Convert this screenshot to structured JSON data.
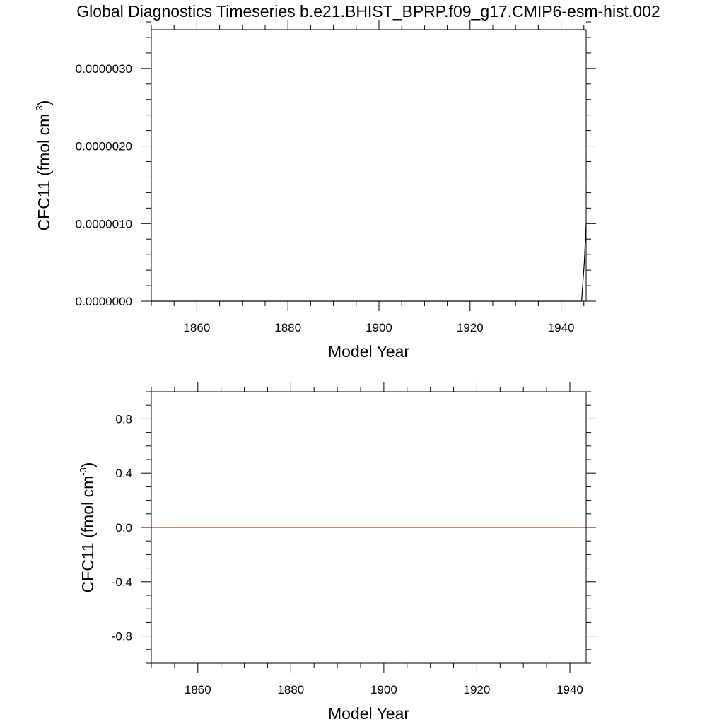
{
  "figure": {
    "title": "Global Diagnostics Timeseries b.e21.BHIST_BPRP.f09_g17.CMIP6-esm-hist.002"
  },
  "chart_data": [
    {
      "type": "line",
      "title": "",
      "xlabel": "Model Year",
      "ylabel": {
        "main": "CFC11 (fmol cm",
        "sup": "-3",
        "close": ")"
      },
      "xlim": [
        1850,
        1945.5
      ],
      "ylim": [
        0,
        3.5e-06
      ],
      "x_ticks": [
        1860,
        1880,
        1900,
        1920,
        1940
      ],
      "x_tick_labels": [
        "1860",
        "1880",
        "1900",
        "1920",
        "1940"
      ],
      "x_minor_step": 5,
      "y_ticks": [
        0,
        1e-06,
        2e-06,
        3e-06
      ],
      "y_tick_labels": [
        "0.0000000",
        "0.0000010",
        "0.0000020",
        "0.0000030"
      ],
      "y_minor_step": 2e-07,
      "grid": false,
      "series": [
        {
          "color": "#000000",
          "x": [
            1850,
            1944.5,
            1945.1,
            1945.5
          ],
          "y": [
            0,
            0,
            5e-07,
            1e-06
          ]
        }
      ]
    },
    {
      "type": "line",
      "title": "",
      "xlabel": "Model Year",
      "ylabel": {
        "main": "CFC11 (fmol cm",
        "sup": "-3",
        "close": ")"
      },
      "xlim": [
        1850,
        1943.5
      ],
      "ylim": [
        -1.0,
        1.0
      ],
      "x_ticks": [
        1860,
        1880,
        1900,
        1920,
        1940
      ],
      "x_tick_labels": [
        "1860",
        "1880",
        "1900",
        "1920",
        "1940"
      ],
      "x_minor_step": 5,
      "y_ticks": [
        -0.8,
        -0.4,
        0.0,
        0.4,
        0.8
      ],
      "y_tick_labels": [
        "-0.8",
        "-0.4",
        "0.0",
        "0.4",
        "0.8"
      ],
      "y_minor_step": 0.1,
      "grid": false,
      "series": [
        {
          "color": "#a0401f",
          "x": [
            1850,
            1943.5
          ],
          "y": [
            0,
            0
          ]
        }
      ]
    }
  ]
}
